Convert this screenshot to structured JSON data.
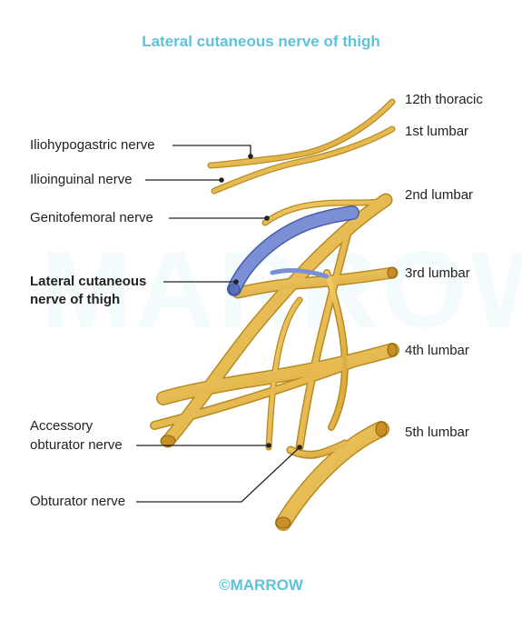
{
  "diagram": {
    "title": "Lateral cutaneous nerve of thigh",
    "watermark": "MARROW",
    "footer": "©MARROW",
    "roots": {
      "t12": "12th thoracic",
      "l1": "1st lumbar",
      "l2": "2nd lumbar",
      "l3": "3rd lumbar",
      "l4": "4th lumbar",
      "l5": "5th lumbar"
    },
    "nerves": {
      "iliohypogastric": "Iliohypogastric nerve",
      "ilioinguinal": "Ilioinguinal nerve",
      "genitofemoral": "Genitofemoral nerve",
      "lcnt_line1": "Lateral cutaneous",
      "lcnt_line2": "nerve of thigh",
      "accessory_line1": "Accessory",
      "accessory_line2": "obturator nerve",
      "obturator": "Obturator nerve"
    },
    "colors": {
      "nerve_fill": "#e7b84a",
      "nerve_outline": "#b88a22",
      "highlight": "#7a8fd6",
      "title": "#5ec3d9"
    }
  }
}
